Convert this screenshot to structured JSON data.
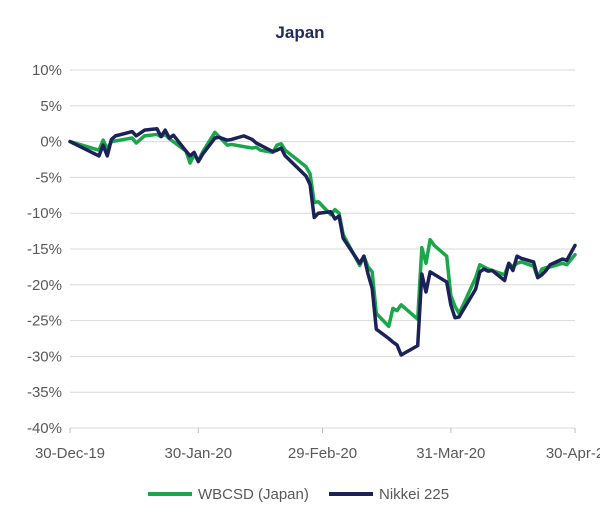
{
  "chart_data": {
    "type": "line",
    "title": "Japan",
    "xlabel": "",
    "ylabel": "",
    "x_tick_labels": [
      "30-Dec-19",
      "30-Jan-20",
      "29-Feb-20",
      "31-Mar-20",
      "30-Apr-2"
    ],
    "x_tick_dates": [
      "2019-12-30",
      "2020-01-30",
      "2020-02-29",
      "2020-03-31",
      "2020-04-30"
    ],
    "y_ticks": [
      10,
      5,
      0,
      -5,
      -10,
      -15,
      -20,
      -25,
      -30,
      -35,
      -40
    ],
    "y_tick_labels": [
      "10%",
      "5%",
      "0%",
      "-5%",
      "-10%",
      "-15%",
      "-20%",
      "-25%",
      "-30%",
      "-35%",
      "-40%"
    ],
    "ylim": [
      -40,
      10
    ],
    "xlim": [
      "2019-12-30",
      "2020-04-30"
    ],
    "grid": true,
    "legend_position": "bottom",
    "series": [
      {
        "name": "WBCSD (Japan)",
        "color": "#1aa64a",
        "points": [
          [
            "2019-12-30",
            0.0
          ],
          [
            "2020-01-06",
            -1.2
          ],
          [
            "2020-01-07",
            0.2
          ],
          [
            "2020-01-08",
            -1.0
          ],
          [
            "2020-01-09",
            0.0
          ],
          [
            "2020-01-14",
            0.5
          ],
          [
            "2020-01-15",
            -0.2
          ],
          [
            "2020-01-16",
            0.3
          ],
          [
            "2020-01-17",
            0.8
          ],
          [
            "2020-01-20",
            1.0
          ],
          [
            "2020-01-21",
            0.7
          ],
          [
            "2020-01-22",
            1.0
          ],
          [
            "2020-01-23",
            0.4
          ],
          [
            "2020-01-27",
            -1.3
          ],
          [
            "2020-01-28",
            -3.0
          ],
          [
            "2020-01-29",
            -1.8
          ],
          [
            "2020-01-30",
            -2.7
          ],
          [
            "2020-01-31",
            -1.5
          ],
          [
            "2020-02-03",
            1.3
          ],
          [
            "2020-02-06",
            -0.5
          ],
          [
            "2020-02-07",
            -0.4
          ],
          [
            "2020-02-10",
            -0.7
          ],
          [
            "2020-02-12",
            -0.9
          ],
          [
            "2020-02-13",
            -0.8
          ],
          [
            "2020-02-14",
            -1.2
          ],
          [
            "2020-02-17",
            -1.5
          ],
          [
            "2020-02-18",
            -0.5
          ],
          [
            "2020-02-19",
            -0.3
          ],
          [
            "2020-02-20",
            -1.2
          ],
          [
            "2020-02-25",
            -3.5
          ],
          [
            "2020-02-26",
            -4.5
          ],
          [
            "2020-02-27",
            -8.5
          ],
          [
            "2020-02-28",
            -8.4
          ],
          [
            "2020-03-02",
            -10.2
          ],
          [
            "2020-03-03",
            -9.5
          ],
          [
            "2020-03-04",
            -10.0
          ],
          [
            "2020-03-05",
            -13.0
          ],
          [
            "2020-03-09",
            -17.3
          ],
          [
            "2020-03-10",
            -16.0
          ],
          [
            "2020-03-11",
            -17.5
          ],
          [
            "2020-03-12",
            -18.2
          ],
          [
            "2020-03-13",
            -24.0
          ],
          [
            "2020-03-16",
            -25.8
          ],
          [
            "2020-03-17",
            -23.3
          ],
          [
            "2020-03-18",
            -23.6
          ],
          [
            "2020-03-19",
            -22.8
          ],
          [
            "2020-03-23",
            -24.8
          ],
          [
            "2020-03-24",
            -14.8
          ],
          [
            "2020-03-25",
            -17.0
          ],
          [
            "2020-03-26",
            -13.7
          ],
          [
            "2020-03-27",
            -14.5
          ],
          [
            "2020-03-30",
            -16.0
          ],
          [
            "2020-03-31",
            -21.5
          ],
          [
            "2020-04-01",
            -23.0
          ],
          [
            "2020-04-02",
            -24.0
          ],
          [
            "2020-04-03",
            -22.8
          ],
          [
            "2020-04-06",
            -19.0
          ],
          [
            "2020-04-07",
            -17.2
          ],
          [
            "2020-04-08",
            -17.5
          ],
          [
            "2020-04-09",
            -17.8
          ],
          [
            "2020-04-10",
            -18.0
          ],
          [
            "2020-04-13",
            -18.6
          ],
          [
            "2020-04-14",
            -17.0
          ],
          [
            "2020-04-15",
            -17.5
          ],
          [
            "2020-04-16",
            -17.0
          ],
          [
            "2020-04-17",
            -16.8
          ],
          [
            "2020-04-20",
            -17.4
          ],
          [
            "2020-04-21",
            -19.0
          ],
          [
            "2020-04-22",
            -17.8
          ],
          [
            "2020-04-23",
            -17.6
          ],
          [
            "2020-04-24",
            -17.5
          ],
          [
            "2020-04-27",
            -17.0
          ],
          [
            "2020-04-28",
            -17.2
          ],
          [
            "2020-04-30",
            -15.8
          ]
        ]
      },
      {
        "name": "Nikkei 225",
        "color": "#1c2158",
        "points": [
          [
            "2019-12-30",
            0.0
          ],
          [
            "2020-01-06",
            -2.0
          ],
          [
            "2020-01-07",
            -0.5
          ],
          [
            "2020-01-08",
            -2.0
          ],
          [
            "2020-01-09",
            0.3
          ],
          [
            "2020-01-10",
            0.8
          ],
          [
            "2020-01-14",
            1.4
          ],
          [
            "2020-01-15",
            0.8
          ],
          [
            "2020-01-16",
            1.2
          ],
          [
            "2020-01-17",
            1.6
          ],
          [
            "2020-01-20",
            1.8
          ],
          [
            "2020-01-21",
            0.7
          ],
          [
            "2020-01-22",
            1.6
          ],
          [
            "2020-01-23",
            0.5
          ],
          [
            "2020-01-24",
            0.9
          ],
          [
            "2020-01-27",
            -1.3
          ],
          [
            "2020-01-28",
            -2.0
          ],
          [
            "2020-01-29",
            -1.5
          ],
          [
            "2020-01-30",
            -2.8
          ],
          [
            "2020-01-31",
            -1.8
          ],
          [
            "2020-02-03",
            0.5
          ],
          [
            "2020-02-04",
            0.6
          ],
          [
            "2020-02-06",
            0.2
          ],
          [
            "2020-02-07",
            0.3
          ],
          [
            "2020-02-10",
            0.8
          ],
          [
            "2020-02-12",
            0.3
          ],
          [
            "2020-02-13",
            -0.2
          ],
          [
            "2020-02-14",
            -0.5
          ],
          [
            "2020-02-17",
            -1.4
          ],
          [
            "2020-02-18",
            -1.2
          ],
          [
            "2020-02-19",
            -0.9
          ],
          [
            "2020-02-20",
            -2.0
          ],
          [
            "2020-02-25",
            -4.8
          ],
          [
            "2020-02-26",
            -6.0
          ],
          [
            "2020-02-27",
            -10.6
          ],
          [
            "2020-02-28",
            -10.0
          ],
          [
            "2020-03-02",
            -9.8
          ],
          [
            "2020-03-03",
            -10.8
          ],
          [
            "2020-03-04",
            -10.4
          ],
          [
            "2020-03-05",
            -13.5
          ],
          [
            "2020-03-09",
            -17.0
          ],
          [
            "2020-03-10",
            -16.0
          ],
          [
            "2020-03-11",
            -18.5
          ],
          [
            "2020-03-12",
            -20.5
          ],
          [
            "2020-03-13",
            -26.2
          ],
          [
            "2020-03-16",
            -27.5
          ],
          [
            "2020-03-17",
            -28.0
          ],
          [
            "2020-03-18",
            -28.4
          ],
          [
            "2020-03-19",
            -29.8
          ],
          [
            "2020-03-23",
            -28.5
          ],
          [
            "2020-03-24",
            -18.5
          ],
          [
            "2020-03-25",
            -21.0
          ],
          [
            "2020-03-26",
            -18.2
          ],
          [
            "2020-03-30",
            -19.6
          ],
          [
            "2020-03-31",
            -22.8
          ],
          [
            "2020-04-01",
            -24.6
          ],
          [
            "2020-04-02",
            -24.5
          ],
          [
            "2020-04-03",
            -23.5
          ],
          [
            "2020-04-06",
            -20.6
          ],
          [
            "2020-04-07",
            -18.2
          ],
          [
            "2020-04-08",
            -17.8
          ],
          [
            "2020-04-09",
            -18.1
          ],
          [
            "2020-04-10",
            -18.0
          ],
          [
            "2020-04-13",
            -19.4
          ],
          [
            "2020-04-14",
            -17.0
          ],
          [
            "2020-04-15",
            -18.0
          ],
          [
            "2020-04-16",
            -16.0
          ],
          [
            "2020-04-17",
            -16.3
          ],
          [
            "2020-04-20",
            -16.8
          ],
          [
            "2020-04-21",
            -19.0
          ],
          [
            "2020-04-22",
            -18.6
          ],
          [
            "2020-04-23",
            -18.0
          ],
          [
            "2020-04-24",
            -17.2
          ],
          [
            "2020-04-27",
            -16.4
          ],
          [
            "2020-04-28",
            -16.6
          ],
          [
            "2020-04-30",
            -14.5
          ]
        ]
      }
    ]
  }
}
